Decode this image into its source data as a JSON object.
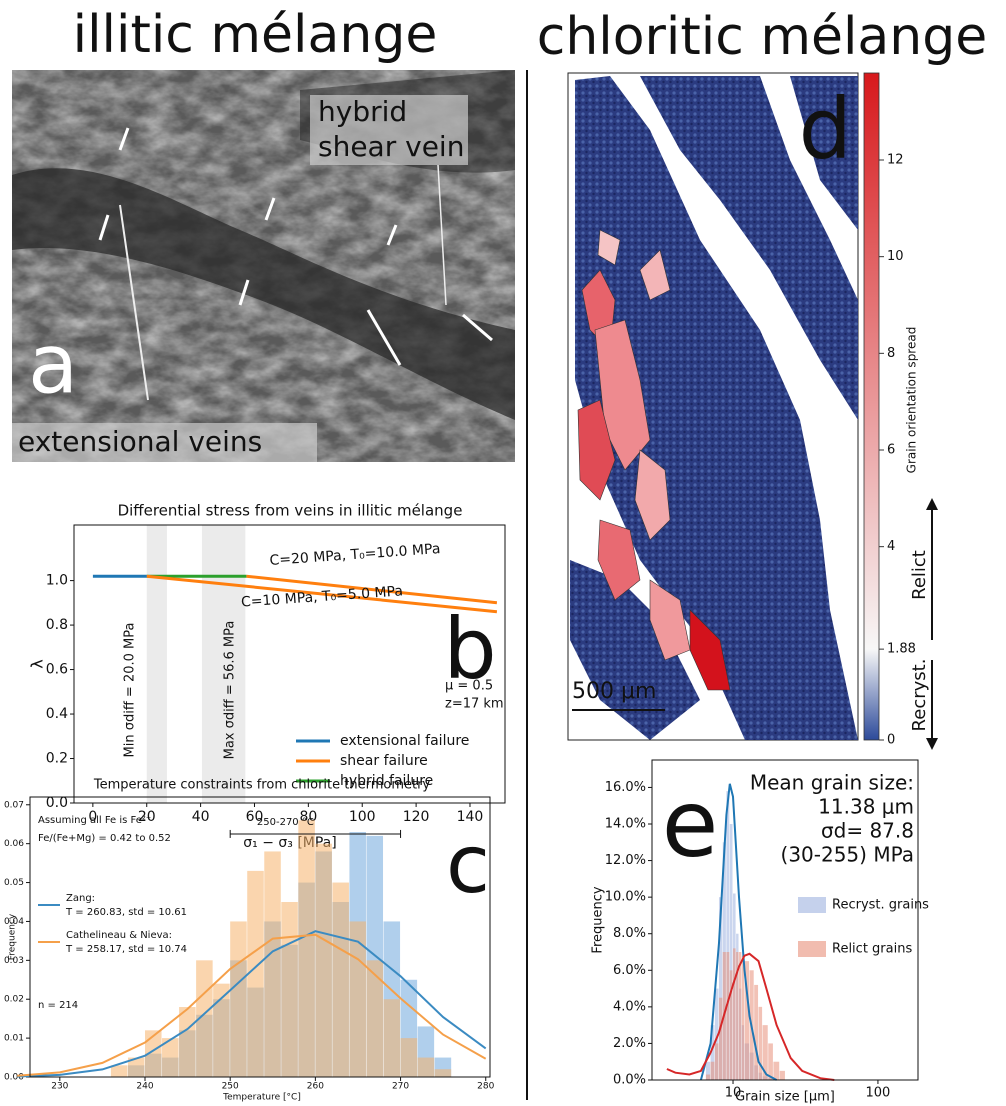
{
  "figure": {
    "titles": [
      "illitic mélange",
      "chloritic mélange"
    ],
    "panel_a": {
      "letter": "a",
      "labels": [
        "hybrid",
        "shear vein",
        "extensional veins"
      ]
    },
    "panel_d": {
      "letter": "d",
      "scale_bar": "500 μm",
      "colorbar": {
        "label": "Grain orientation spread",
        "lim": [
          0,
          13.8
        ],
        "ticks": [
          0,
          1.88,
          4,
          6,
          8,
          10,
          12
        ],
        "relict": "Relict",
        "recryst": "Recryst."
      }
    }
  },
  "chart_data": [
    {
      "type": "line",
      "title": "Differential stress from veins in illitic mélange",
      "xlabel": "σ₁ − σ₃ [MPa]",
      "ylabel": "λ",
      "letter": "b",
      "xlim": [
        -7,
        153
      ],
      "ylim": [
        0,
        1.25
      ],
      "xticks": [
        0,
        20,
        40,
        60,
        80,
        100,
        120,
        140
      ],
      "yticks": [
        {
          "value": 0,
          "label": "0.0"
        },
        0.2,
        0.4,
        0.6,
        0.8,
        {
          "value": 1,
          "label": "1.0"
        }
      ],
      "bands": [
        [
          20,
          27.5
        ],
        [
          40.5,
          56.6
        ]
      ],
      "band_labels": [
        "Min σdiff = 20.0 MPa",
        "Max σdiff = 56.6 MPa"
      ],
      "series": [
        {
          "name": "extensional failure",
          "color": "#1f77b4",
          "x": [
            0,
            20
          ],
          "values": [
            1.02,
            1.02
          ]
        },
        {
          "name": "shear failure",
          "color": "#ff7f0e",
          "x": [
            20,
            150
          ],
          "values": [
            1.02,
            0.86
          ]
        },
        {
          "name": "hybrid failure",
          "color": "#2ca02c",
          "x": [
            20,
            57
          ],
          "values": [
            1.02,
            1.02
          ]
        },
        {
          "color": "#ff7f0e",
          "x": [
            57,
            150
          ],
          "values": [
            1.02,
            0.9
          ]
        }
      ],
      "annotations": [
        "C=20 MPa, T₀=10.0 MPa",
        "C=10 MPa, T₀=5.0 MPa",
        "μ = 0.5",
        "z=17 km"
      ]
    },
    {
      "type": "histogram",
      "title": "Temperature constraints from chlorite thermometry",
      "xlabel": "Temperature [°C]",
      "ylabel": "Frequency",
      "letter": "c",
      "xlim": [
        226.5,
        280.5
      ],
      "ylim": [
        0,
        0.072
      ],
      "xticks": [
        230,
        240,
        250,
        260,
        270,
        280
      ],
      "yticks": [
        {
          "value": 0,
          "label": "0.00"
        },
        0.01,
        0.02,
        0.03,
        0.04,
        0.05,
        0.06,
        0.07
      ],
      "series": [
        {
          "color": "#6fa8dc",
          "bins": [
            236,
            238,
            240,
            242,
            244,
            246,
            248,
            250,
            252,
            254,
            256,
            258,
            260,
            262,
            264,
            266,
            268,
            270,
            272,
            274,
            276
          ],
          "values": [
            0,
            0.003,
            0.006,
            0.005,
            0.012,
            0.016,
            0.02,
            0.03,
            0.023,
            0.04,
            0.034,
            0.05,
            0.058,
            0.045,
            0.063,
            0.062,
            0.04,
            0.025,
            0.013,
            0.005
          ]
        },
        {
          "color": "#f6b26b",
          "bins": [
            236,
            238,
            240,
            242,
            244,
            246,
            248,
            250,
            252,
            254,
            256,
            258,
            260,
            262,
            264,
            266,
            268,
            270,
            272,
            274,
            276
          ],
          "values": [
            0.003,
            0.005,
            0.012,
            0.01,
            0.018,
            0.03,
            0.024,
            0.04,
            0.053,
            0.058,
            0.045,
            0.066,
            0.06,
            0.05,
            0.04,
            0.03,
            0.02,
            0.01,
            0.005,
            0.002
          ]
        }
      ],
      "curves": [
        {
          "name": "Zang:",
          "detail": "T = 260.83, std = 10.61",
          "color": "#3b8bc2",
          "x": [
            225,
            230,
            235,
            240,
            245,
            250,
            255,
            260,
            265,
            270,
            275,
            280
          ],
          "values": [
            0.000126,
            0.00055,
            0.00195,
            0.00547,
            0.01235,
            0.02233,
            0.03233,
            0.0375,
            0.0348,
            0.0259,
            0.0154,
            0.00735
          ]
        },
        {
          "name": "Cathelineau & Nieva:",
          "detail": "T = 258.17, std = 10.74",
          "color": "#f5a04a",
          "x": [
            225,
            230,
            235,
            240,
            245,
            250,
            255,
            260,
            265,
            270,
            275,
            280
          ],
          "values": [
            0.000315,
            0.00119,
            0.00362,
            0.00888,
            0.0175,
            0.0278,
            0.0356,
            0.0366,
            0.0303,
            0.0202,
            0.0109,
            0.0047
          ]
        }
      ],
      "notes": [
        "Assuming all Fe is Fe²⁺",
        "Fe/(Fe+Mg) = 0.42 to 0.52",
        "n = 214"
      ],
      "range": {
        "label": "250-270 °C",
        "x": [
          250,
          270
        ],
        "y": 0.0625
      }
    },
    {
      "type": "histogram",
      "xlabel": "Grain size [μm]",
      "ylabel": "Frequency",
      "letter": "e",
      "xlog": true,
      "xlim": [
        2.76,
        189
      ],
      "ylim": [
        0,
        17.5
      ],
      "xticks": [
        10,
        100
      ],
      "yticks": [
        {
          "value": 0,
          "label": "0.0%"
        },
        {
          "value": 2,
          "label": "2.0%"
        },
        {
          "value": 4,
          "label": "4.0%"
        },
        {
          "value": 6,
          "label": "6.0%"
        },
        {
          "value": 8,
          "label": "8.0%"
        },
        {
          "value": 10,
          "label": "10.0%"
        },
        {
          "value": 12,
          "label": "12.0%"
        },
        {
          "value": 14,
          "label": "14.0%"
        },
        {
          "value": 16,
          "label": "16.0%"
        }
      ],
      "series": [
        {
          "name": "Recryst. grains",
          "color": "#9fb3e0",
          "bins": [
            6.5,
            7,
            7.5,
            8,
            8.5,
            9,
            9.5,
            10,
            10.5,
            11,
            11.5,
            12,
            13,
            14,
            15,
            16,
            17.5,
            19,
            21,
            23
          ],
          "values": [
            1,
            3,
            5,
            10,
            13,
            15.8,
            14,
            10.2,
            8,
            5,
            3,
            2,
            1.5,
            0.8,
            0.4,
            0.2,
            0.1,
            0,
            0
          ]
        },
        {
          "name": "Relict grains",
          "color": "#e8907a",
          "bins": [
            6.5,
            7,
            7.5,
            8,
            8.5,
            9,
            9.5,
            10,
            10.5,
            11,
            11.5,
            12,
            13,
            14,
            15,
            16,
            17.5,
            19,
            21,
            23
          ],
          "values": [
            0.3,
            1,
            2,
            4.5,
            7,
            7,
            6,
            7.2,
            7,
            7,
            6.8,
            6.5,
            6,
            5.2,
            4,
            3,
            2,
            1,
            0.5
          ]
        }
      ],
      "curves": [
        {
          "color": "#1f77b4",
          "x": [
            6,
            7,
            8,
            9,
            9.5,
            10,
            11,
            12,
            13,
            15,
            17,
            20
          ],
          "values": [
            0,
            2,
            7.5,
            14.5,
            16.2,
            15.5,
            10,
            6,
            3.5,
            1,
            0.3,
            0
          ]
        },
        {
          "color": "#d62728",
          "x": [
            3.5,
            4,
            5,
            6,
            7,
            8,
            9,
            10,
            11,
            12,
            13,
            15,
            17,
            20,
            25,
            30,
            40,
            50
          ],
          "values": [
            0.6,
            0.4,
            0.3,
            0.5,
            1.5,
            2.6,
            4,
            5.2,
            6.2,
            6.8,
            6.9,
            6.5,
            5,
            3,
            1.2,
            0.5,
            0.1,
            0
          ]
        }
      ],
      "notes": [
        "Mean grain size:",
        "11.38 μm",
        "σd= 87.8",
        "(30-255) MPa"
      ]
    }
  ]
}
